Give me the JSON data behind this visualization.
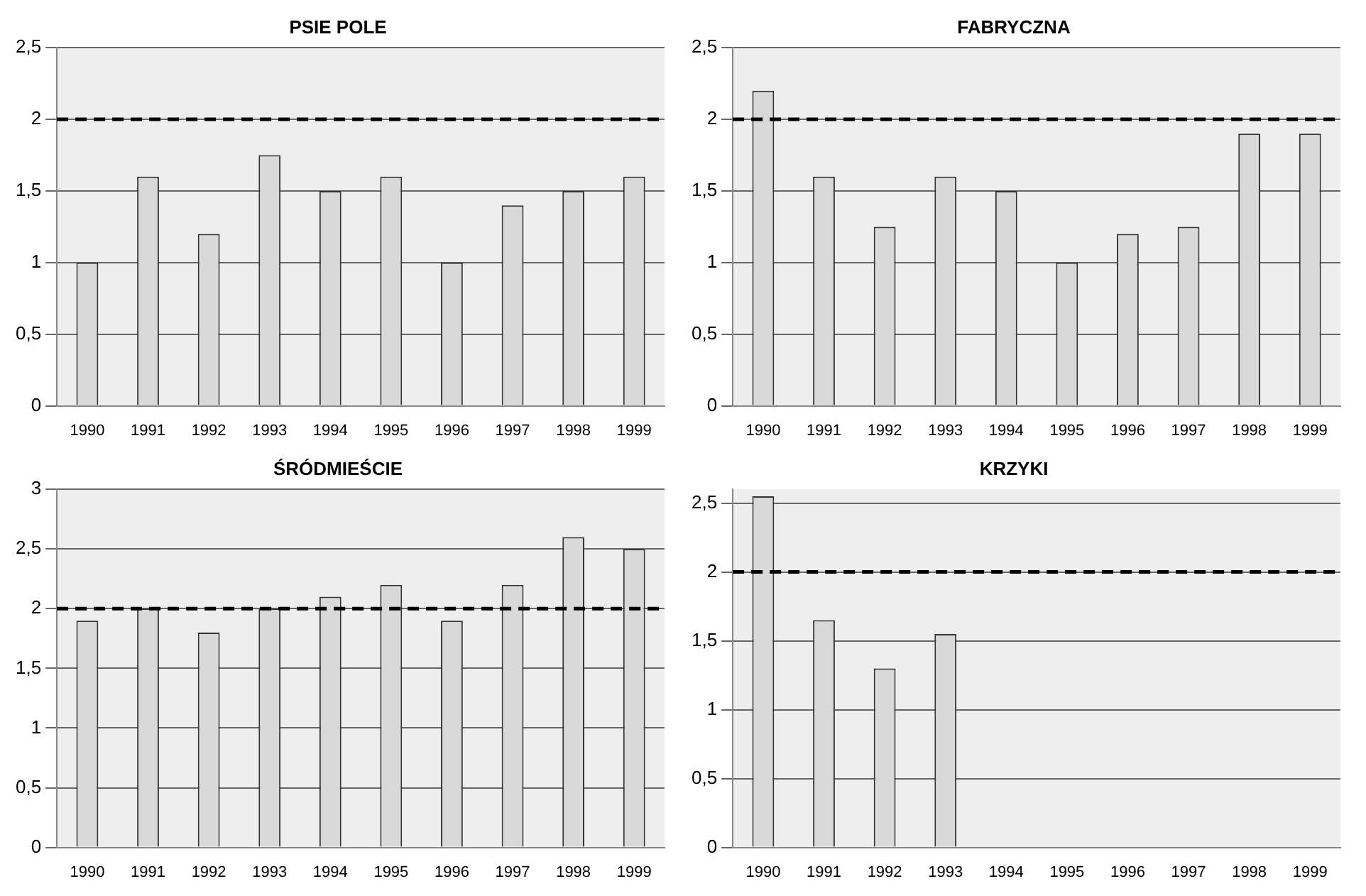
{
  "chart_data": [
    {
      "type": "bar",
      "title": "PSIE POLE",
      "categories": [
        "1990",
        "1991",
        "1992",
        "1993",
        "1994",
        "1995",
        "1996",
        "1997",
        "1998",
        "1999"
      ],
      "values": [
        1.0,
        1.6,
        1.2,
        1.75,
        1.5,
        1.6,
        1.0,
        1.4,
        1.5,
        1.6
      ],
      "color": "#d9d9d9",
      "ylim": [
        0,
        2.5
      ],
      "yticks": [
        0,
        {
          "value": 0.5,
          "label": "0,5"
        },
        1,
        {
          "value": 1.5,
          "label": "1,5"
        },
        2,
        {
          "value": 2.5,
          "label": "2,5"
        }
      ],
      "grid": "y",
      "ref_lines": [
        {
          "axis": "y",
          "value": 2,
          "color": "#000000",
          "line_style": "dashed"
        }
      ]
    },
    {
      "type": "bar",
      "title": "FABRYCZNA",
      "categories": [
        "1990",
        "1991",
        "1992",
        "1993",
        "1994",
        "1995",
        "1996",
        "1997",
        "1998",
        "1999"
      ],
      "values": [
        2.2,
        1.6,
        1.25,
        1.6,
        1.5,
        1.0,
        1.2,
        1.25,
        1.9,
        1.9
      ],
      "color": "#d9d9d9",
      "ylim": [
        0,
        2.5
      ],
      "yticks": [
        0,
        {
          "value": 0.5,
          "label": "0,5"
        },
        1,
        {
          "value": 1.5,
          "label": "1,5"
        },
        2,
        {
          "value": 2.5,
          "label": "2,5"
        }
      ],
      "grid": "y",
      "ref_lines": [
        {
          "axis": "y",
          "value": 2,
          "color": "#000000",
          "line_style": "dashed"
        }
      ]
    },
    {
      "type": "bar",
      "title": "ŚRÓDMIEŚCIE",
      "categories": [
        "1990",
        "1991",
        "1992",
        "1993",
        "1994",
        "1995",
        "1996",
        "1997",
        "1998",
        "1999"
      ],
      "values": [
        1.9,
        2.0,
        1.8,
        2.0,
        2.1,
        2.2,
        1.9,
        2.2,
        2.6,
        2.5
      ],
      "color": "#d9d9d9",
      "ylim": [
        0,
        3
      ],
      "yticks": [
        0,
        {
          "value": 0.5,
          "label": "0,5"
        },
        1,
        {
          "value": 1.5,
          "label": "1,5"
        },
        2,
        {
          "value": 2.5,
          "label": "2,5"
        },
        3
      ],
      "grid": "y",
      "ref_lines": [
        {
          "axis": "y",
          "value": 2,
          "color": "#000000",
          "line_style": "dashed"
        }
      ]
    },
    {
      "type": "bar",
      "title": "KRZYKI",
      "categories": [
        "1990",
        "1991",
        "1992",
        "1993",
        "1994",
        "1995",
        "1996",
        "1997",
        "1998",
        "1999"
      ],
      "values": [
        2.55,
        1.65,
        1.3,
        1.55,
        0,
        0,
        0,
        0,
        0,
        0
      ],
      "color": "#d9d9d9",
      "ylim": [
        0,
        2.6
      ],
      "yticks": [
        0,
        {
          "value": 0.5,
          "label": "0,5"
        },
        1,
        {
          "value": 1.5,
          "label": "1,5"
        },
        2,
        {
          "value": 2.5,
          "label": "2,5"
        }
      ],
      "grid": "y",
      "ref_lines": [
        {
          "axis": "y",
          "value": 2,
          "color": "#000000",
          "line_style": "dashed"
        }
      ]
    }
  ]
}
